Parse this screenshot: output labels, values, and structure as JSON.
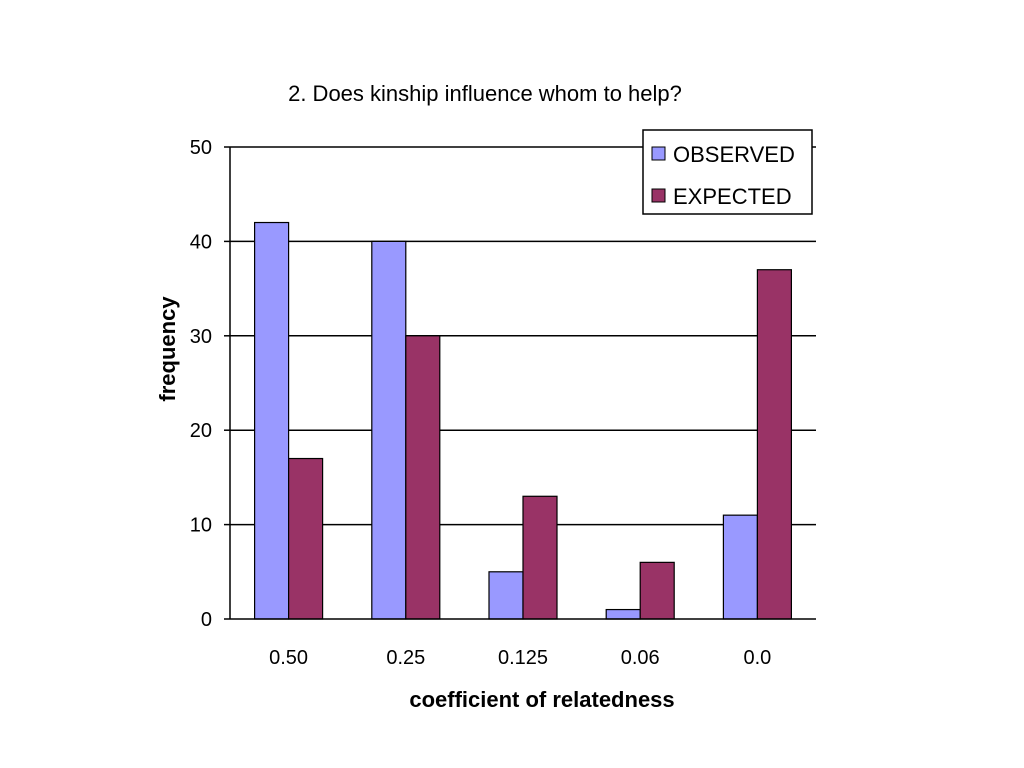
{
  "chart_data": {
    "type": "bar",
    "title": "2. Does kinship influence whom to help?",
    "xlabel": "coefficient of relatedness",
    "ylabel": "frequency",
    "categories": [
      "0.50",
      "0.25",
      "0.125",
      "0.06",
      "0.0"
    ],
    "series": [
      {
        "name": "OBSERVED",
        "color": "#9999ff",
        "values": [
          42,
          40,
          5,
          1,
          11
        ]
      },
      {
        "name": "EXPECTED",
        "color": "#993366",
        "values": [
          17,
          30,
          13,
          6,
          37
        ]
      }
    ],
    "ylim": [
      0,
      50
    ],
    "yticks": [
      "0",
      "10",
      "20",
      "30",
      "40",
      "50"
    ],
    "grid": true,
    "legend_position": "top-right"
  }
}
